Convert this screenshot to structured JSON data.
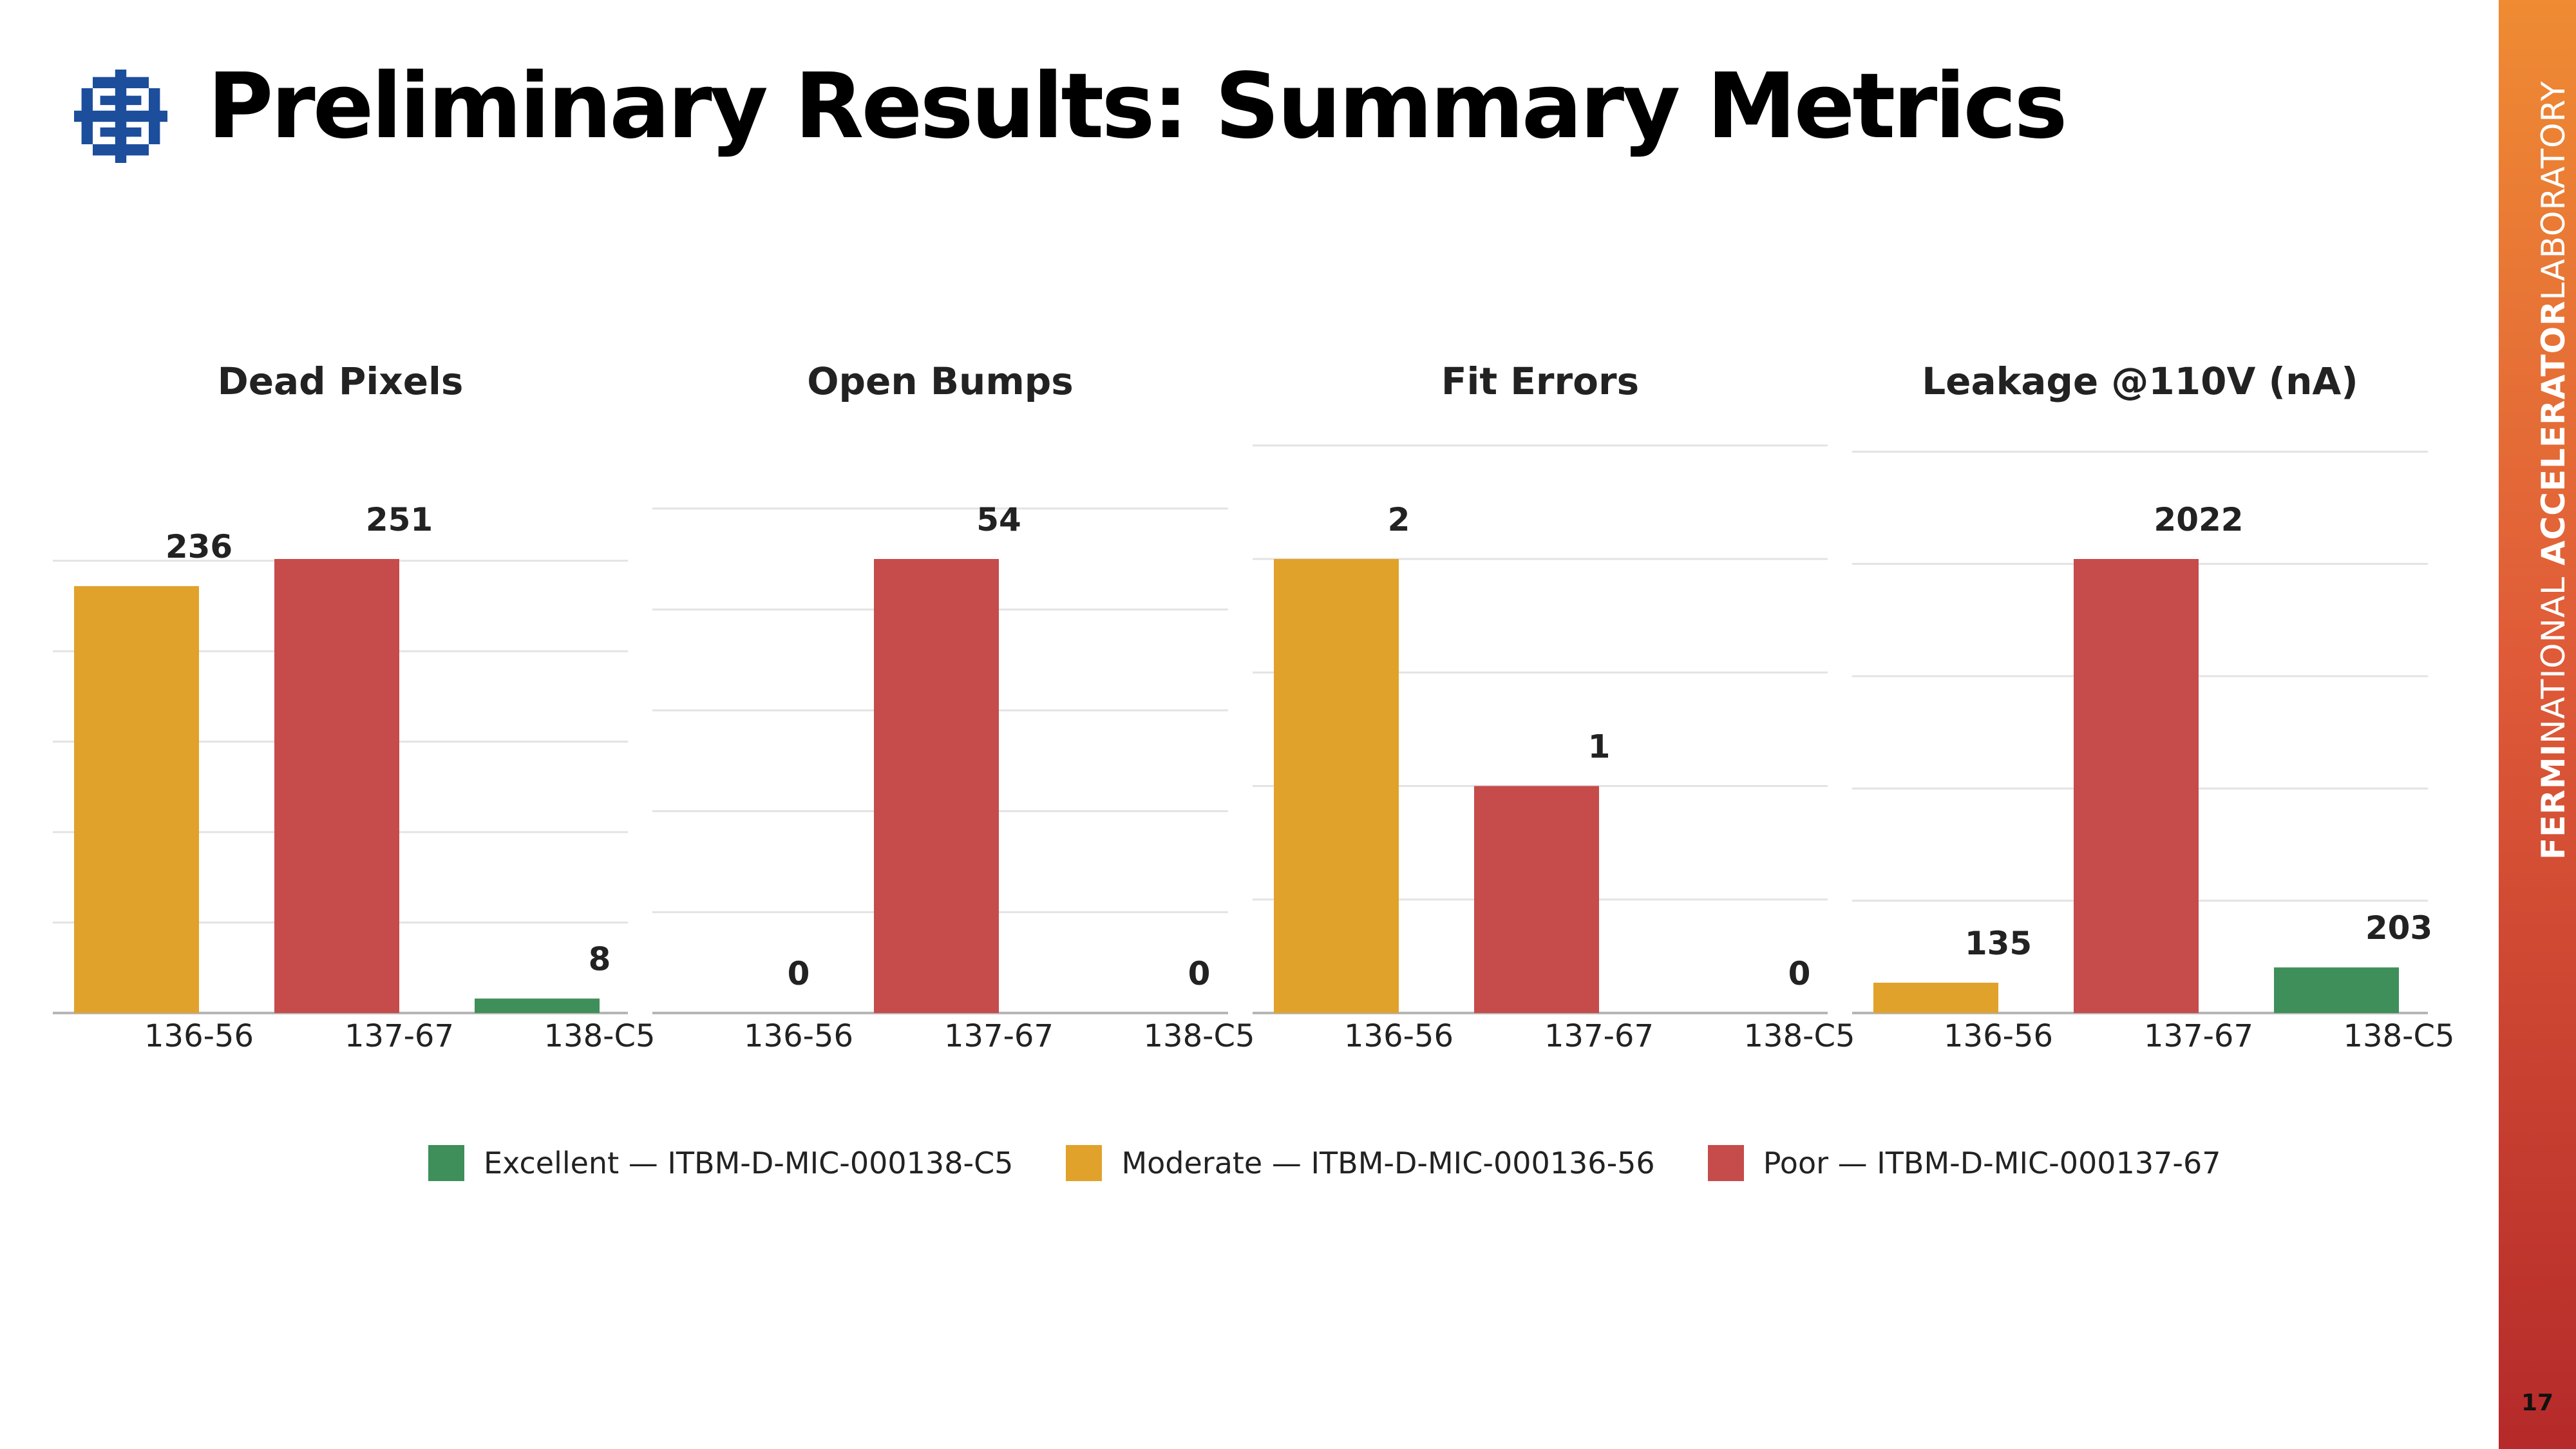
{
  "slide": {
    "title": "Preliminary Results: Summary Metrics",
    "page_number": "17",
    "sidebar_bold": "FERMI",
    "sidebar_mid": "NATIONAL",
    "sidebar_bold2": "ACCELERATOR",
    "sidebar_end": "LABORATORY",
    "logo_icon": "fermilab-logo-icon",
    "logo_color": "#1c4e9c"
  },
  "colors": {
    "excellent": "#3e8f5a",
    "moderate": "#e0a22b",
    "poor": "#c64b4b"
  },
  "legend": [
    {
      "label": "Excellent — ITBM-D-MIC-000138-C5",
      "color": "#3e8f5a"
    },
    {
      "label": "Moderate — ITBM-D-MIC-000136-56",
      "color": "#e0a22b"
    },
    {
      "label": "Poor — ITBM-D-MIC-000137-67",
      "color": "#c64b4b"
    }
  ],
  "chart_data": [
    {
      "type": "bar",
      "title": "Dead Pixels",
      "categories": [
        "136-56",
        "137-67",
        "138-C5"
      ],
      "values": [
        236,
        251,
        8
      ],
      "colors": [
        "#e0a22b",
        "#c64b4b",
        "#3e8f5a"
      ],
      "ylim": [
        0,
        250
      ],
      "grid": true
    },
    {
      "type": "bar",
      "title": "Open Bumps",
      "categories": [
        "136-56",
        "137-67",
        "138-C5"
      ],
      "values": [
        0,
        54,
        0
      ],
      "colors": [
        "#e0a22b",
        "#c64b4b",
        "#3e8f5a"
      ],
      "ylim": [
        0,
        60
      ],
      "grid": true
    },
    {
      "type": "bar",
      "title": "Fit Errors",
      "categories": [
        "136-56",
        "137-67",
        "138-C5"
      ],
      "values": [
        2,
        1,
        0
      ],
      "colors": [
        "#e0a22b",
        "#c64b4b",
        "#3e8f5a"
      ],
      "ylim": [
        0,
        2.5
      ],
      "grid": true
    },
    {
      "type": "bar",
      "title": "Leakage @110V (nA)",
      "categories": [
        "136-56",
        "137-67",
        "138-C5"
      ],
      "values": [
        135,
        2022,
        203
      ],
      "colors": [
        "#e0a22b",
        "#c64b4b",
        "#3e8f5a"
      ],
      "ylim": [
        0,
        2500
      ],
      "grid": true
    }
  ]
}
